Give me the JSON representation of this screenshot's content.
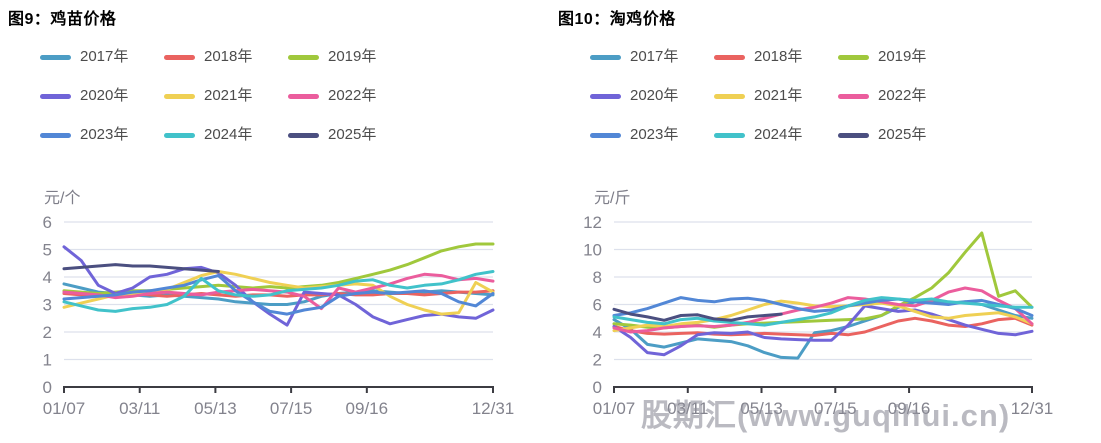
{
  "page": {
    "watermark": "股期汇(www.guqihui.cn)"
  },
  "chart_data": [
    {
      "type": "line",
      "title": "图9：鸡苗价格",
      "unit": "元/个",
      "ylabel": "元/个",
      "xlabel": "",
      "ylim": [
        0,
        6
      ],
      "y_ticks": [
        0,
        1,
        2,
        3,
        4,
        5,
        6
      ],
      "grid": "horizontal",
      "legend_position": "top",
      "x_tick_labels": [
        "01/07",
        "03/11",
        "05/13",
        "07/15",
        "09/16",
        "12/31"
      ],
      "x_tick_positions": [
        0,
        0.1765,
        0.3529,
        0.5294,
        0.7059,
        1
      ],
      "points_per_series": 26,
      "series": [
        {
          "name": "2017年",
          "color": "#4c9dc5",
          "values": [
            3.75,
            3.6,
            3.45,
            3.4,
            3.35,
            3.3,
            3.35,
            3.3,
            3.25,
            3.2,
            3.1,
            3.05,
            3.0,
            3.0,
            3.1,
            3.3,
            3.4,
            3.45,
            3.5,
            3.45,
            3.4,
            3.45,
            3.5,
            3.45,
            3.4,
            3.35
          ]
        },
        {
          "name": "2018年",
          "color": "#ea6360",
          "values": [
            3.4,
            3.35,
            3.3,
            3.35,
            3.4,
            3.35,
            3.3,
            3.35,
            3.4,
            3.35,
            3.3,
            3.35,
            3.35,
            3.3,
            3.35,
            3.35,
            3.4,
            3.35,
            3.35,
            3.4,
            3.4,
            3.35,
            3.4,
            3.45,
            3.45,
            3.5
          ]
        },
        {
          "name": "2019年",
          "color": "#a0c83c",
          "values": [
            3.5,
            3.45,
            3.4,
            3.45,
            3.5,
            3.5,
            3.55,
            3.6,
            3.65,
            3.7,
            3.65,
            3.6,
            3.65,
            3.6,
            3.65,
            3.7,
            3.8,
            3.95,
            4.1,
            4.25,
            4.45,
            4.7,
            4.95,
            5.1,
            5.2,
            5.2
          ]
        },
        {
          "name": "2020年",
          "color": "#7064d8",
          "values": [
            5.1,
            4.6,
            3.7,
            3.4,
            3.6,
            4.0,
            4.1,
            4.3,
            4.35,
            4.15,
            3.7,
            3.1,
            2.65,
            2.25,
            3.45,
            3.4,
            3.35,
            3.0,
            2.55,
            2.3,
            2.45,
            2.6,
            2.65,
            2.55,
            2.5,
            2.8
          ]
        },
        {
          "name": "2021年",
          "color": "#efd054",
          "values": [
            2.9,
            3.05,
            3.2,
            3.35,
            3.4,
            3.45,
            3.55,
            3.8,
            4.05,
            4.2,
            4.1,
            3.95,
            3.8,
            3.7,
            3.6,
            3.65,
            3.7,
            3.75,
            3.7,
            3.3,
            3.0,
            2.8,
            2.65,
            2.7,
            3.8,
            3.45
          ]
        },
        {
          "name": "2022年",
          "color": "#eb5d9d",
          "values": [
            3.45,
            3.4,
            3.35,
            3.25,
            3.3,
            3.4,
            3.45,
            3.4,
            3.35,
            3.45,
            3.5,
            3.55,
            3.5,
            3.45,
            3.3,
            2.85,
            3.6,
            3.45,
            3.6,
            3.75,
            3.95,
            4.1,
            4.05,
            3.9,
            3.95,
            3.85
          ]
        },
        {
          "name": "2023年",
          "color": "#5287d6",
          "values": [
            3.2,
            3.25,
            3.3,
            3.35,
            3.45,
            3.5,
            3.6,
            3.7,
            3.9,
            4.05,
            3.5,
            3.1,
            2.75,
            2.65,
            2.8,
            2.9,
            3.3,
            3.4,
            3.45,
            3.4,
            3.45,
            3.5,
            3.4,
            3.1,
            2.95,
            3.4
          ]
        },
        {
          "name": "2024年",
          "color": "#41c2ca",
          "values": [
            3.1,
            2.95,
            2.8,
            2.75,
            2.85,
            2.9,
            3.0,
            3.3,
            3.95,
            3.5,
            3.35,
            3.3,
            3.35,
            3.5,
            3.55,
            3.6,
            3.7,
            3.85,
            3.9,
            3.7,
            3.6,
            3.7,
            3.75,
            3.9,
            4.1,
            4.2
          ]
        },
        {
          "name": "2025年",
          "color": "#4b4f80",
          "values": [
            4.3,
            4.35,
            4.4,
            4.45,
            4.4,
            4.4,
            4.35,
            4.3,
            4.25,
            4.2
          ]
        }
      ]
    },
    {
      "type": "line",
      "title": "图10：淘鸡价格",
      "unit": "元/斤",
      "ylabel": "元/斤",
      "xlabel": "",
      "ylim": [
        0,
        12
      ],
      "y_ticks": [
        0,
        2,
        4,
        6,
        8,
        10,
        12
      ],
      "grid": "horizontal",
      "legend_position": "top",
      "x_tick_labels": [
        "01/07",
        "03/11",
        "05/13",
        "07/15",
        "09/16",
        "12/31"
      ],
      "x_tick_positions": [
        0,
        0.1765,
        0.3529,
        0.5294,
        0.7059,
        1
      ],
      "points_per_series": 26,
      "series": [
        {
          "name": "2017年",
          "color": "#4c9dc5",
          "values": [
            4.9,
            4.2,
            3.1,
            2.9,
            3.2,
            3.5,
            3.4,
            3.3,
            3.0,
            2.5,
            2.15,
            2.1,
            3.95,
            4.1,
            4.4,
            4.8,
            5.2,
            5.8,
            6.2,
            6.3,
            6.1,
            6.2,
            6.0,
            5.6,
            5.2,
            5.0
          ]
        },
        {
          "name": "2018年",
          "color": "#ea6360",
          "values": [
            4.4,
            4.1,
            3.9,
            3.85,
            3.9,
            3.95,
            3.85,
            3.8,
            3.85,
            3.9,
            3.85,
            3.8,
            3.75,
            3.9,
            3.8,
            4.0,
            4.4,
            4.8,
            5.0,
            4.8,
            4.5,
            4.4,
            4.6,
            4.9,
            5.0,
            4.5
          ]
        },
        {
          "name": "2019年",
          "color": "#a0c83c",
          "values": [
            4.6,
            4.5,
            4.35,
            4.3,
            4.4,
            4.5,
            4.35,
            4.5,
            4.6,
            4.65,
            4.7,
            4.75,
            4.8,
            4.85,
            4.9,
            4.95,
            5.2,
            5.9,
            6.5,
            7.2,
            8.3,
            9.8,
            11.2,
            6.6,
            7.0,
            5.8
          ]
        },
        {
          "name": "2020年",
          "color": "#7064d8",
          "values": [
            4.4,
            3.6,
            2.5,
            2.35,
            3.0,
            3.8,
            3.95,
            3.9,
            4.0,
            3.6,
            3.5,
            3.45,
            3.4,
            3.4,
            4.5,
            5.9,
            5.7,
            5.5,
            5.6,
            5.3,
            4.9,
            4.5,
            4.2,
            3.9,
            3.8,
            4.05
          ]
        },
        {
          "name": "2021年",
          "color": "#efd054",
          "values": [
            4.1,
            4.3,
            4.5,
            4.4,
            4.6,
            4.7,
            4.9,
            5.2,
            5.6,
            6.0,
            6.25,
            6.1,
            5.9,
            5.85,
            5.9,
            6.0,
            6.1,
            5.9,
            5.5,
            5.1,
            5.0,
            5.2,
            5.3,
            5.4,
            5.1,
            4.6
          ]
        },
        {
          "name": "2022年",
          "color": "#eb5d9d",
          "values": [
            4.3,
            4.0,
            4.1,
            4.3,
            4.4,
            4.45,
            4.4,
            4.5,
            4.7,
            5.0,
            5.3,
            5.6,
            5.8,
            6.1,
            6.5,
            6.4,
            6.2,
            6.0,
            5.9,
            6.3,
            6.9,
            7.2,
            7.0,
            6.3,
            5.7,
            4.6
          ]
        },
        {
          "name": "2023年",
          "color": "#5287d6",
          "values": [
            5.2,
            5.4,
            5.7,
            6.1,
            6.5,
            6.3,
            6.2,
            6.4,
            6.45,
            6.3,
            6.0,
            5.7,
            5.5,
            5.6,
            5.9,
            6.1,
            6.3,
            6.4,
            6.2,
            6.1,
            6.0,
            6.2,
            6.3,
            6.0,
            5.7,
            5.2
          ]
        },
        {
          "name": "2024年",
          "color": "#41c2ca",
          "values": [
            5.1,
            4.9,
            4.7,
            4.6,
            4.9,
            5.0,
            4.8,
            4.7,
            4.6,
            4.5,
            4.7,
            4.9,
            5.1,
            5.4,
            5.9,
            6.3,
            6.5,
            6.4,
            6.3,
            6.4,
            6.2,
            6.1,
            6.0,
            5.9,
            5.8,
            5.8
          ]
        },
        {
          "name": "2025年",
          "color": "#4b4f80",
          "values": [
            5.65,
            5.3,
            5.1,
            4.85,
            5.2,
            5.25,
            4.95,
            4.85,
            5.1,
            5.2,
            5.3
          ]
        }
      ]
    }
  ],
  "style": {
    "grid_color": "#dde1ec",
    "axis_color": "#3c3c42",
    "tick_label_color": "#83838d"
  }
}
